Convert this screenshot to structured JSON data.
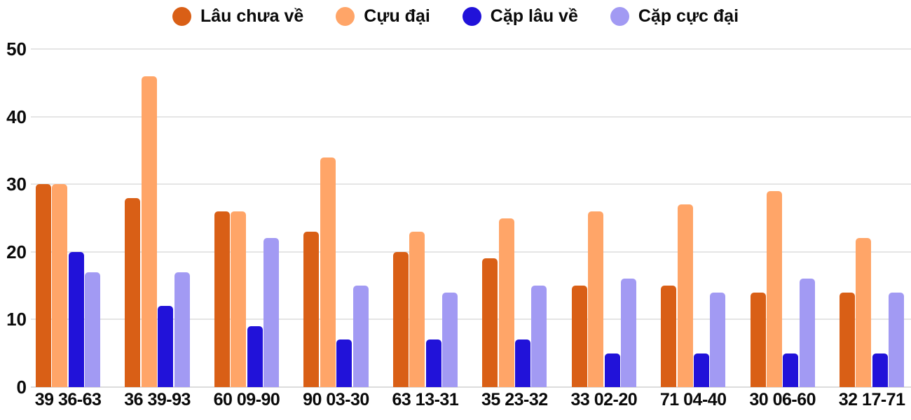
{
  "chart_data": {
    "type": "bar",
    "title": "",
    "xlabel": "",
    "ylabel": "",
    "categories": [
      "39 36-63",
      "36 39-93",
      "60 09-90",
      "90 03-30",
      "63 13-31",
      "35 23-32",
      "33 02-20",
      "71 04-40",
      "30 06-60",
      "32 17-71"
    ],
    "series": [
      {
        "name": "Lâu chưa về",
        "color": "#d95f16",
        "values": [
          30,
          28,
          26,
          23,
          20,
          19,
          15,
          15,
          14,
          14
        ]
      },
      {
        "name": "Cựu đại",
        "color": "#ffa568",
        "values": [
          30,
          46,
          26,
          34,
          23,
          25,
          26,
          27,
          29,
          22
        ]
      },
      {
        "name": "Cặp lâu về",
        "color": "#2112d9",
        "values": [
          20,
          12,
          9,
          7,
          7,
          7,
          5,
          5,
          5,
          5
        ]
      },
      {
        "name": "Cặp cực đại",
        "color": "#a29af3",
        "values": [
          17,
          17,
          22,
          15,
          14,
          15,
          16,
          14,
          16,
          14
        ]
      }
    ],
    "ylim": [
      0,
      50
    ],
    "yticks": [
      0,
      10,
      20,
      30,
      40,
      50
    ],
    "grid": true,
    "legend_position": "top",
    "colors": {
      "background": "#ffffff",
      "gridline": "#e5e5e5",
      "axis_text": "#0a0a0a"
    }
  }
}
